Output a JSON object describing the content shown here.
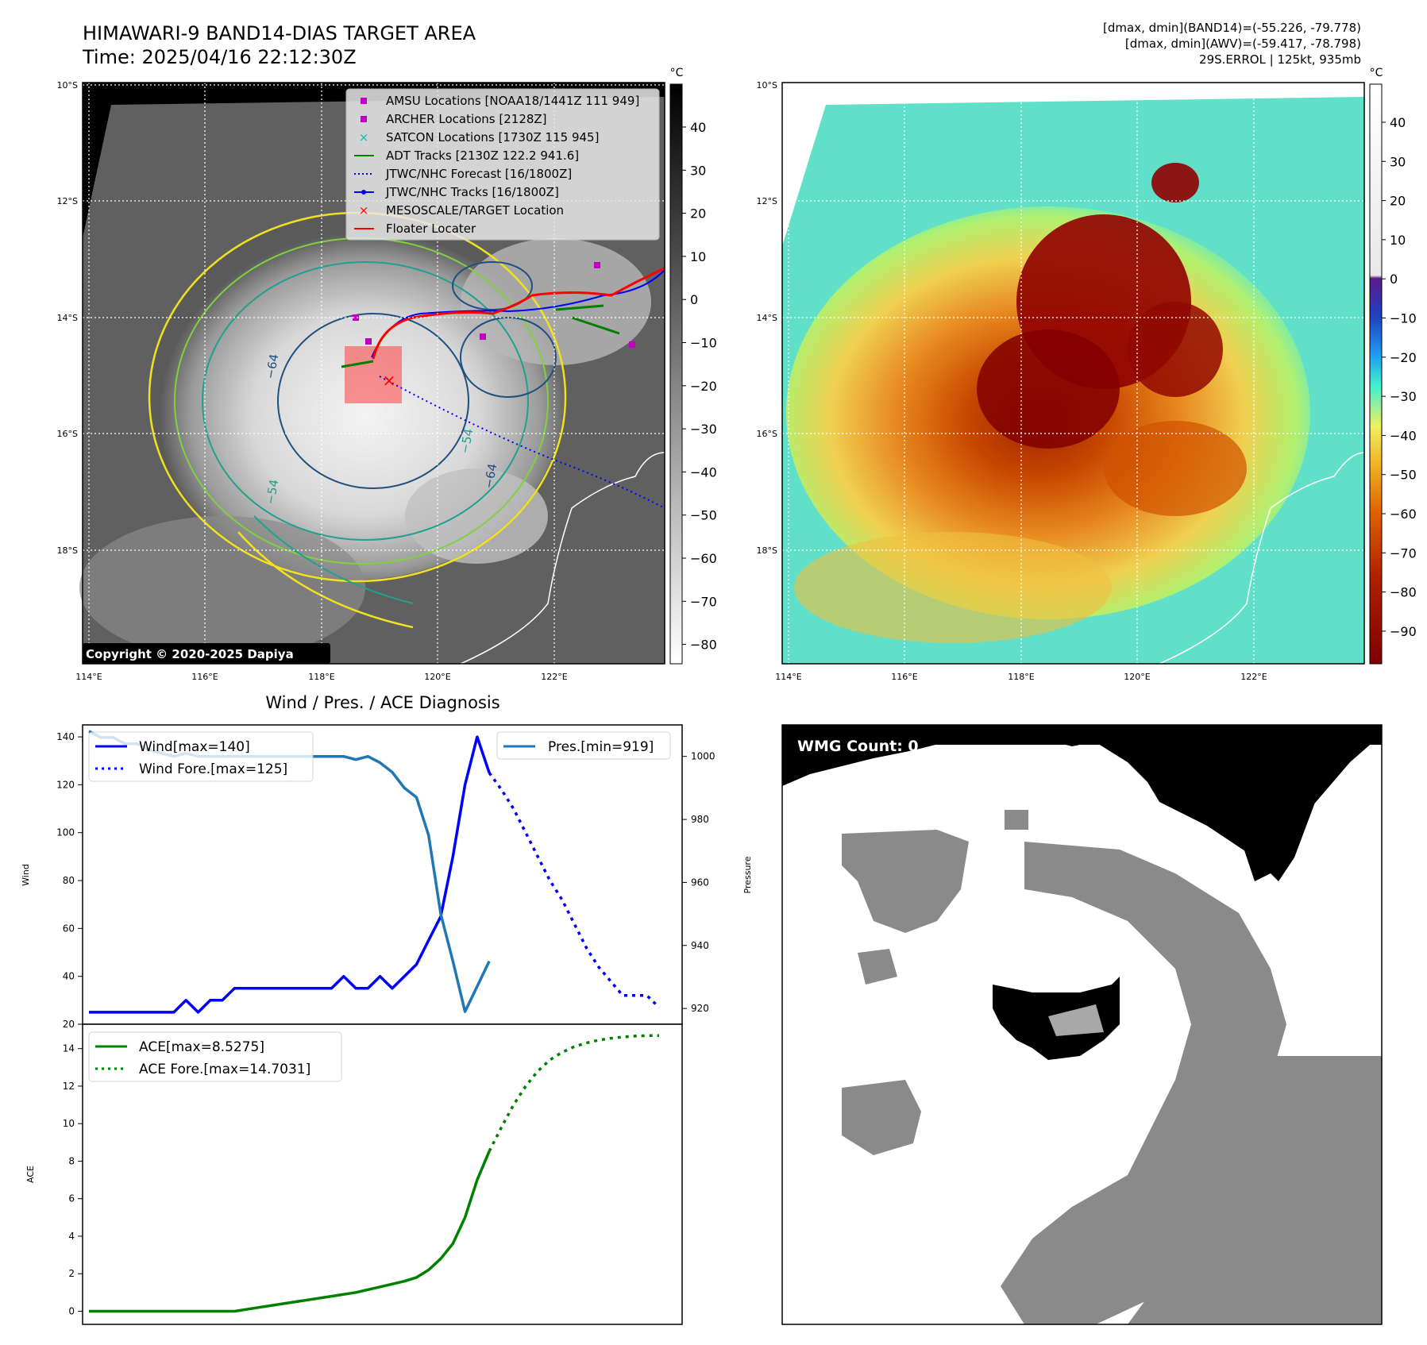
{
  "header": {
    "title_line1": "HIMAWARI-9 BAND14-DIAS TARGET AREA",
    "title_line2": "Time: 2025/04/16 22:12:30Z",
    "right_line1": "[dmax, dmin](BAND14)=(-55.226, -79.778)",
    "right_line2": "[dmax, dmin](AWV)=(-59.417, -78.798)",
    "right_line3": "29S.ERROL | 125kt, 935mb"
  },
  "map_ir": {
    "lat_labels": [
      "10°S",
      "12°S",
      "14°S",
      "16°S",
      "18°S"
    ],
    "lon_labels": [
      "114°E",
      "116°E",
      "118°E",
      "120°E",
      "122°E"
    ],
    "colorbar_unit": "°C",
    "colorbar_ticks": [
      "40",
      "30",
      "20",
      "10",
      "0",
      "−10",
      "−20",
      "−30",
      "−40",
      "−50",
      "−60",
      "−70",
      "−80"
    ],
    "legend": [
      {
        "label": "AMSU Locations [NOAA18/1441Z 111 949]",
        "color": "#bf00bf",
        "marker": "square"
      },
      {
        "label": "ARCHER Locations [2128Z]",
        "color": "#bf00bf",
        "marker": "square"
      },
      {
        "label": "SATCON Locations [1730Z 115 945]",
        "color": "#00bfbf",
        "marker": "x"
      },
      {
        "label": "ADT Tracks [2130Z 122.2 941.6]",
        "color": "#008000",
        "marker": "line"
      },
      {
        "label": "JTWC/NHC Forecast [16/1800Z]",
        "color": "#0000ff",
        "marker": "dotted"
      },
      {
        "label": "JTWC/NHC Tracks [16/1800Z]",
        "color": "#0000ff",
        "marker": "line-dot"
      },
      {
        "label": "MESOSCALE/TARGET Location",
        "color": "#ff0000",
        "marker": "x"
      },
      {
        "label": "Floater Locater",
        "color": "#ff0000",
        "marker": "line"
      }
    ],
    "contour_labels": [
      "−64",
      "−54",
      "−54",
      "−64"
    ],
    "copyright": "Copyright © 2020-2025 Dapiya"
  },
  "map_color": {
    "lat_labels": [
      "10°S",
      "12°S",
      "14°S",
      "16°S",
      "18°S"
    ],
    "lon_labels": [
      "114°E",
      "116°E",
      "118°E",
      "120°E",
      "122°E"
    ],
    "colorbar_unit": "°C",
    "colorbar_ticks": [
      "40",
      "30",
      "20",
      "10",
      "0",
      "−10",
      "−20",
      "−30",
      "−40",
      "−50",
      "−60",
      "−70",
      "−80",
      "−90"
    ]
  },
  "wmg": {
    "label": "WMG Count: 0"
  },
  "chart_data": [
    {
      "type": "line",
      "title": "Wind / Pres. / ACE Diagnosis",
      "ylabel": "Wind",
      "ylabel2": "Pressure",
      "ylim": [
        20,
        145
      ],
      "ylim2": [
        915,
        1010
      ],
      "yticks": [
        20,
        40,
        60,
        80,
        100,
        120,
        140
      ],
      "yticks2": [
        920,
        940,
        960,
        980,
        1000
      ],
      "legend_left": [
        "Wind[max=140]",
        "Wind Fore.[max=125]"
      ],
      "legend_right": [
        "Pres.[min=919]"
      ],
      "series": [
        {
          "name": "Wind[max=140]",
          "style": "solid",
          "color": "#0000ff",
          "axis": "left",
          "x": [
            0,
            1,
            2,
            3,
            4,
            5,
            6,
            7,
            8,
            9,
            10,
            11,
            12,
            13,
            14,
            15,
            16,
            17,
            18,
            19,
            20,
            21,
            22,
            23,
            24,
            25,
            26,
            27,
            28,
            29,
            30,
            31,
            32,
            33,
            34,
            35,
            36
          ],
          "values": [
            25,
            25,
            25,
            25,
            25,
            25,
            25,
            25,
            30,
            25,
            30,
            30,
            35,
            35,
            35,
            35,
            35,
            35,
            35,
            35,
            35,
            40,
            35,
            35,
            40,
            35,
            40,
            45,
            55,
            65,
            90,
            120,
            140,
            125,
            null,
            null,
            null
          ]
        },
        {
          "name": "Wind Fore.[max=125]",
          "style": "dotted",
          "color": "#0000ff",
          "axis": "left",
          "x": [
            33,
            34,
            35,
            36,
            37,
            38,
            39,
            40,
            41,
            42,
            43,
            44,
            45,
            46,
            47
          ],
          "values": [
            125,
            118,
            110,
            100,
            90,
            80,
            72,
            62,
            52,
            44,
            38,
            32,
            32,
            32,
            27
          ]
        },
        {
          "name": "Pres.[min=919]",
          "style": "solid",
          "color": "#1f77b4",
          "axis": "right",
          "x": [
            0,
            1,
            2,
            3,
            4,
            5,
            6,
            7,
            8,
            9,
            10,
            11,
            12,
            13,
            14,
            15,
            16,
            17,
            18,
            19,
            20,
            21,
            22,
            23,
            24,
            25,
            26,
            27,
            28,
            29,
            30,
            31,
            32,
            33
          ],
          "values": [
            1008,
            1006,
            1006,
            1004,
            1004,
            1002,
            1001,
            1000,
            1001,
            1000,
            1000,
            1000,
            1000,
            1000,
            1000,
            1000,
            1000,
            1000,
            1000,
            1000,
            1000,
            1000,
            999,
            1000,
            998,
            995,
            990,
            987,
            975,
            950,
            935,
            919,
            927,
            935
          ]
        }
      ]
    },
    {
      "type": "line",
      "ylabel": "ACE",
      "ylim": [
        -0.7,
        15.3
      ],
      "yticks": [
        0,
        2,
        4,
        6,
        8,
        10,
        12,
        14
      ],
      "legend": [
        "ACE[max=8.5275]",
        "ACE Fore.[max=14.7031]"
      ],
      "series": [
        {
          "name": "ACE[max=8.5275]",
          "style": "solid",
          "color": "#008000",
          "x": [
            0,
            12,
            14,
            16,
            18,
            20,
            22,
            24,
            26,
            27,
            28,
            29,
            30,
            31,
            32,
            33
          ],
          "values": [
            0,
            0,
            0.2,
            0.4,
            0.6,
            0.8,
            1.0,
            1.3,
            1.6,
            1.8,
            2.2,
            2.8,
            3.6,
            5.0,
            7.0,
            8.53
          ]
        },
        {
          "name": "ACE Fore.[max=14.7031]",
          "style": "dotted",
          "color": "#008000",
          "x": [
            33,
            34,
            35,
            36,
            37,
            38,
            39,
            40,
            41,
            42,
            43,
            44,
            45,
            46,
            47
          ],
          "values": [
            8.53,
            9.8,
            11.0,
            12.0,
            12.8,
            13.4,
            13.8,
            14.1,
            14.3,
            14.45,
            14.55,
            14.62,
            14.67,
            14.69,
            14.7
          ]
        }
      ]
    }
  ]
}
